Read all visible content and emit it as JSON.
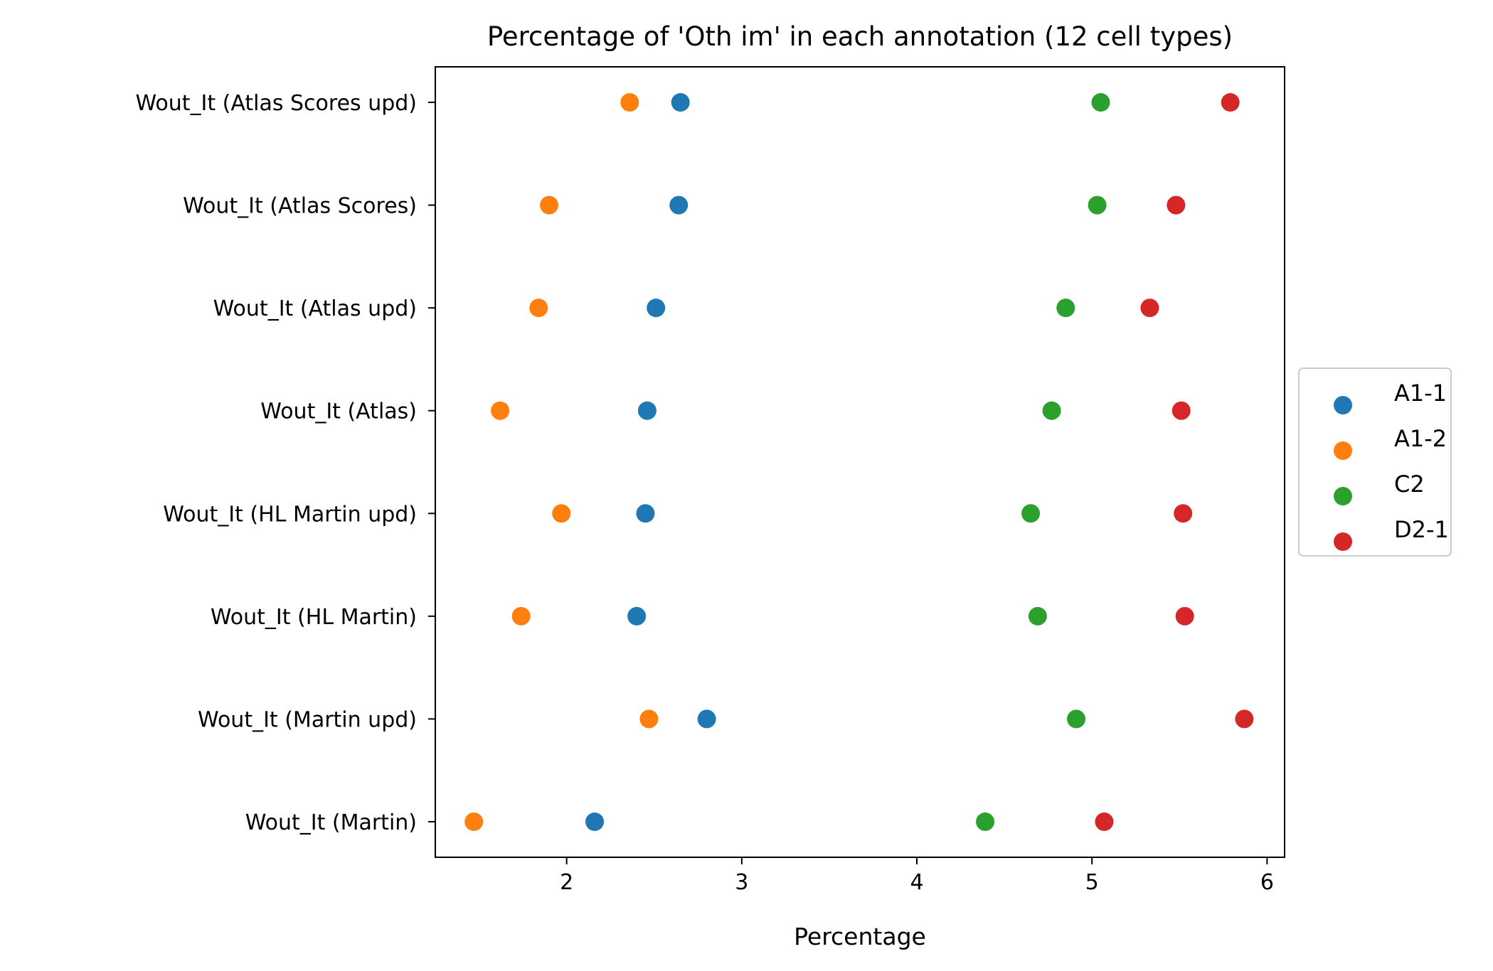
{
  "chart_data": {
    "type": "scatter",
    "title": "Percentage of 'Oth im' in each annotation (12 cell types)",
    "xlabel": "Percentage",
    "ylabel": "",
    "xlim": [
      1.25,
      6.1
    ],
    "xticks": [
      2,
      3,
      4,
      5,
      6
    ],
    "categories": [
      "Wout_It (Martin)",
      "Wout_It (Martin upd)",
      "Wout_It (HL Martin)",
      "Wout_It (HL Martin upd)",
      "Wout_It (Atlas)",
      "Wout_It (Atlas upd)",
      "Wout_It (Atlas Scores)",
      "Wout_It (Atlas Scores upd)"
    ],
    "grid": false,
    "legend_position": "right",
    "series": [
      {
        "name": "A1-1",
        "color": "#1f77b4",
        "values": [
          2.16,
          2.8,
          2.4,
          2.45,
          2.46,
          2.51,
          2.64,
          2.65
        ]
      },
      {
        "name": "A1-2",
        "color": "#ff7f0e",
        "values": [
          1.47,
          2.47,
          1.74,
          1.97,
          1.62,
          1.84,
          1.9,
          2.36
        ]
      },
      {
        "name": "C2",
        "color": "#2ca02c",
        "values": [
          4.39,
          4.91,
          4.69,
          4.65,
          4.77,
          4.85,
          5.03,
          5.05
        ]
      },
      {
        "name": "D2-1",
        "color": "#d62728",
        "values": [
          5.07,
          5.87,
          5.53,
          5.52,
          5.51,
          5.33,
          5.48,
          5.79
        ]
      }
    ]
  }
}
